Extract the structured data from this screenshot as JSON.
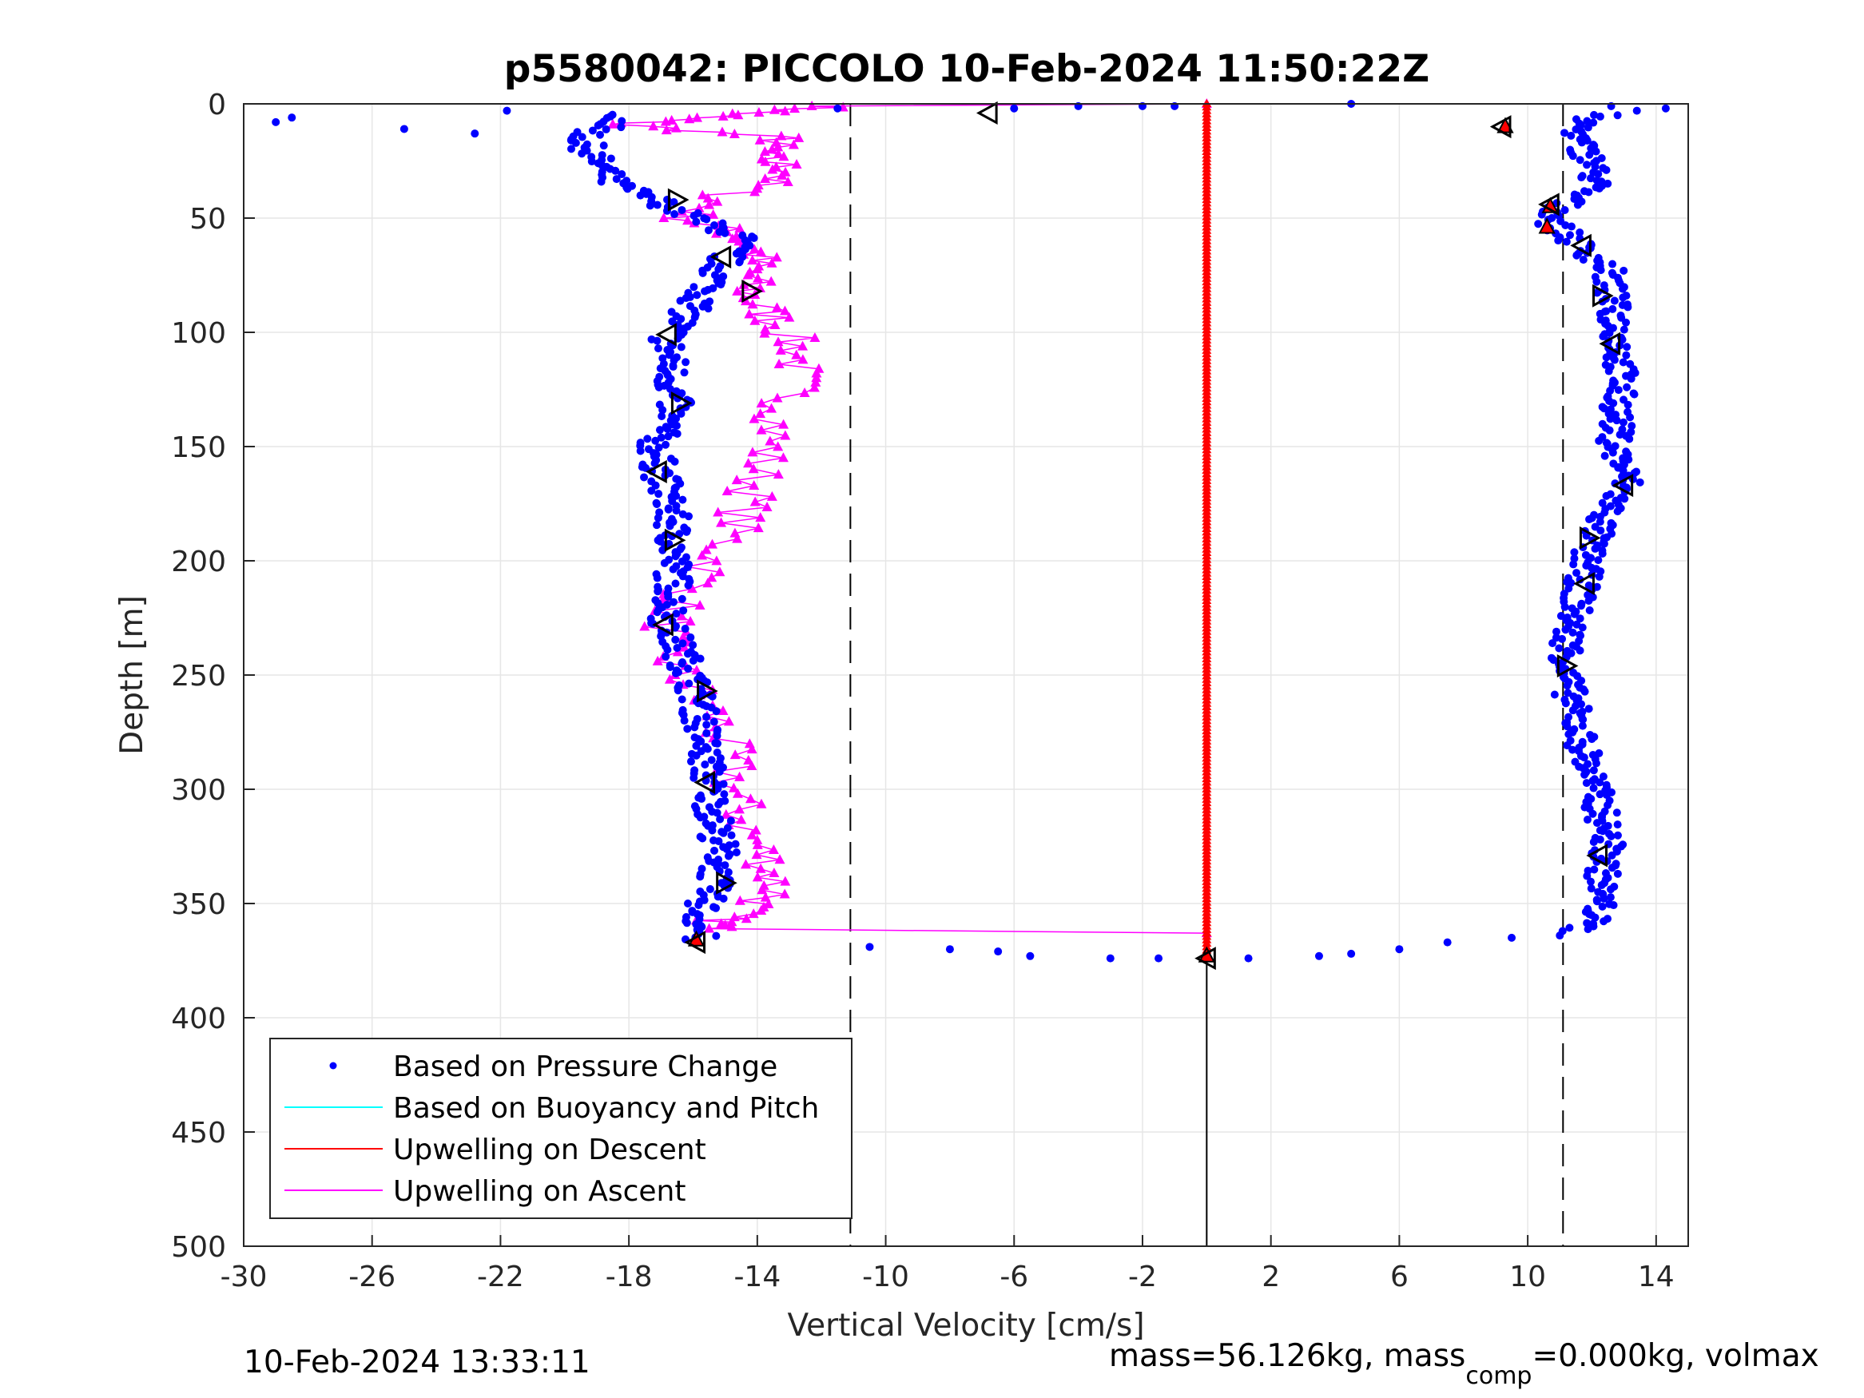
{
  "chart_data": {
    "type": "scatter",
    "title": "p5580042: PICCOLO 10-Feb-2024 11:50:22Z",
    "xlabel": "Vertical Velocity [cm/s]",
    "ylabel": "Depth [m]",
    "xlim": [
      -30,
      15
    ],
    "ylim": [
      0,
      500
    ],
    "y_reversed": true,
    "grid": true,
    "legend_position": "bottom-left",
    "x_ticks": [
      -30,
      -26,
      -22,
      -18,
      -14,
      -10,
      -6,
      -2,
      2,
      6,
      10,
      14
    ],
    "y_ticks": [
      0,
      50,
      100,
      150,
      200,
      250,
      300,
      350,
      400,
      450,
      500
    ],
    "x_tick_labels": [
      "-30",
      "-26",
      "-22",
      "-18",
      "-14",
      "-10",
      "-6",
      "-2",
      "2",
      "6",
      "10",
      "14"
    ],
    "y_tick_labels": [
      "0",
      "50",
      "100",
      "150",
      "200",
      "250",
      "300",
      "350",
      "400",
      "450",
      "500"
    ],
    "reference_lines": {
      "dashed_x": [
        -11.1,
        11.1
      ],
      "solid_x": 0,
      "solid_depth_range": [
        375,
        500
      ]
    },
    "series": [
      {
        "name": "Based on Pressure Change",
        "style": "dots",
        "color": "#0000ff",
        "descent_profile": [
          {
            "depth": 5,
            "vel": -18
          },
          {
            "depth": 15,
            "vel": -19.5
          },
          {
            "depth": 25,
            "vel": -19
          },
          {
            "depth": 35,
            "vel": -18.5
          },
          {
            "depth": 42,
            "vel": -17.2
          },
          {
            "depth": 50,
            "vel": -16
          },
          {
            "depth": 58,
            "vel": -14.5
          },
          {
            "depth": 68,
            "vel": -15
          },
          {
            "depth": 80,
            "vel": -15.5
          },
          {
            "depth": 92,
            "vel": -16.2
          },
          {
            "depth": 102,
            "vel": -16.8
          },
          {
            "depth": 115,
            "vel": -16.7
          },
          {
            "depth": 132,
            "vel": -16.6
          },
          {
            "depth": 150,
            "vel": -17.2
          },
          {
            "depth": 163,
            "vel": -17
          },
          {
            "depth": 178,
            "vel": -16.7
          },
          {
            "depth": 192,
            "vel": -16.6
          },
          {
            "depth": 210,
            "vel": -16.6
          },
          {
            "depth": 228,
            "vel": -16.8
          },
          {
            "depth": 245,
            "vel": -16.2
          },
          {
            "depth": 258,
            "vel": -15.9
          },
          {
            "depth": 275,
            "vel": -15.7
          },
          {
            "depth": 298,
            "vel": -15.5
          },
          {
            "depth": 315,
            "vel": -15.3
          },
          {
            "depth": 330,
            "vel": -15.1
          },
          {
            "depth": 342,
            "vel": -15.4
          },
          {
            "depth": 355,
            "vel": -15.8
          },
          {
            "depth": 366,
            "vel": -15.8
          }
        ],
        "ascent_profile": [
          {
            "depth": 5,
            "vel": 11.8
          },
          {
            "depth": 15,
            "vel": 11.5
          },
          {
            "depth": 25,
            "vel": 12
          },
          {
            "depth": 35,
            "vel": 12.1
          },
          {
            "depth": 45,
            "vel": 11
          },
          {
            "depth": 52,
            "vel": 10.8
          },
          {
            "depth": 62,
            "vel": 11.6
          },
          {
            "depth": 72,
            "vel": 12.5
          },
          {
            "depth": 85,
            "vel": 12.6
          },
          {
            "depth": 100,
            "vel": 12.8
          },
          {
            "depth": 115,
            "vel": 12.9
          },
          {
            "depth": 135,
            "vel": 12.8
          },
          {
            "depth": 150,
            "vel": 12.7
          },
          {
            "depth": 165,
            "vel": 13.1
          },
          {
            "depth": 180,
            "vel": 12.4
          },
          {
            "depth": 195,
            "vel": 11.9
          },
          {
            "depth": 210,
            "vel": 11.7
          },
          {
            "depth": 230,
            "vel": 11.3
          },
          {
            "depth": 250,
            "vel": 11.2
          },
          {
            "depth": 270,
            "vel": 11.5
          },
          {
            "depth": 290,
            "vel": 11.9
          },
          {
            "depth": 310,
            "vel": 12.3
          },
          {
            "depth": 325,
            "vel": 12.5
          },
          {
            "depth": 340,
            "vel": 12.3
          },
          {
            "depth": 355,
            "vel": 12.2
          },
          {
            "depth": 362,
            "vel": 11.5
          }
        ],
        "surface_points": [
          {
            "depth": 8,
            "vel": -29
          },
          {
            "depth": 6,
            "vel": -28.5
          },
          {
            "depth": 11,
            "vel": -25
          },
          {
            "depth": 13,
            "vel": -22.8
          },
          {
            "depth": 3,
            "vel": -21.8
          },
          {
            "depth": 2,
            "vel": -11.5
          },
          {
            "depth": 2,
            "vel": -6
          },
          {
            "depth": 1,
            "vel": -4
          },
          {
            "depth": 1,
            "vel": -2
          },
          {
            "depth": 1,
            "vel": -1
          },
          {
            "depth": 0,
            "vel": 4.5
          },
          {
            "depth": 2,
            "vel": 14.3
          },
          {
            "depth": 3,
            "vel": 13.4
          },
          {
            "depth": 5,
            "vel": 12.8
          },
          {
            "depth": 1,
            "vel": 12.6
          }
        ],
        "bottom_points": [
          {
            "depth": 369,
            "vel": -10.5
          },
          {
            "depth": 370,
            "vel": -8
          },
          {
            "depth": 371,
            "vel": -6.5
          },
          {
            "depth": 373,
            "vel": -5.5
          },
          {
            "depth": 374,
            "vel": -3
          },
          {
            "depth": 374,
            "vel": -1.5
          },
          {
            "depth": 374,
            "vel": 0
          },
          {
            "depth": 374,
            "vel": 1.3
          },
          {
            "depth": 373,
            "vel": 3.5
          },
          {
            "depth": 372,
            "vel": 4.5
          },
          {
            "depth": 370,
            "vel": 6
          },
          {
            "depth": 367,
            "vel": 7.5
          },
          {
            "depth": 365,
            "vel": 9.5
          },
          {
            "depth": 364,
            "vel": 11
          }
        ]
      },
      {
        "name": "Based on Buoyancy and Pitch",
        "style": "line",
        "color": "#00ffff",
        "points": []
      },
      {
        "name": "Upwelling on Descent",
        "style": "line-triangles",
        "color": "#ff0000",
        "points": [
          {
            "depth": 0,
            "vel": 0
          },
          {
            "depth": 373,
            "vel": 0
          }
        ]
      },
      {
        "name": "Upwelling on Ascent",
        "style": "line-triangles",
        "color": "#ff00ff",
        "points": [
          {
            "depth": 0,
            "vel": 0
          },
          {
            "depth": 1,
            "vel": -11.5
          },
          {
            "depth": 5,
            "vel": -15
          },
          {
            "depth": 9,
            "vel": -18.3
          },
          {
            "depth": 15,
            "vel": -13.2
          },
          {
            "depth": 22,
            "vel": -14
          },
          {
            "depth": 30,
            "vel": -12.8
          },
          {
            "depth": 40,
            "vel": -15
          },
          {
            "depth": 50,
            "vel": -16.2
          },
          {
            "depth": 58,
            "vel": -14.5
          },
          {
            "depth": 66,
            "vel": -14
          },
          {
            "depth": 75,
            "vel": -14.3
          },
          {
            "depth": 85,
            "vel": -14.2
          },
          {
            "depth": 95,
            "vel": -13.4
          },
          {
            "depth": 108,
            "vel": -12.7
          },
          {
            "depth": 122,
            "vel": -12.8
          },
          {
            "depth": 138,
            "vel": -13.3
          },
          {
            "depth": 155,
            "vel": -13.8
          },
          {
            "depth": 172,
            "vel": -14.2
          },
          {
            "depth": 188,
            "vel": -14.8
          },
          {
            "depth": 205,
            "vel": -15.6
          },
          {
            "depth": 222,
            "vel": -16.6
          },
          {
            "depth": 238,
            "vel": -17
          },
          {
            "depth": 252,
            "vel": -16.3
          },
          {
            "depth": 268,
            "vel": -15.3
          },
          {
            "depth": 285,
            "vel": -14.9
          },
          {
            "depth": 302,
            "vel": -14.7
          },
          {
            "depth": 318,
            "vel": -14.3
          },
          {
            "depth": 333,
            "vel": -13.6
          },
          {
            "depth": 346,
            "vel": -13.4
          },
          {
            "depth": 356,
            "vel": -15
          },
          {
            "depth": 361,
            "vel": -15.5
          },
          {
            "depth": 363,
            "vel": 0
          }
        ]
      }
    ],
    "markers": {
      "open_triangles": [
        {
          "depth": 4,
          "vel": -6.8,
          "dir": "left"
        },
        {
          "depth": 42,
          "vel": -16.5,
          "dir": "right"
        },
        {
          "depth": 67,
          "vel": -15.1,
          "dir": "left"
        },
        {
          "depth": 82,
          "vel": -14.2,
          "dir": "right"
        },
        {
          "depth": 101,
          "vel": -16.8,
          "dir": "left"
        },
        {
          "depth": 131,
          "vel": -16.4,
          "dir": "right"
        },
        {
          "depth": 161,
          "vel": -17.1,
          "dir": "left"
        },
        {
          "depth": 191,
          "vel": -16.6,
          "dir": "right"
        },
        {
          "depth": 228,
          "vel": -16.9,
          "dir": "left"
        },
        {
          "depth": 257,
          "vel": -15.6,
          "dir": "right"
        },
        {
          "depth": 297,
          "vel": -15.6,
          "dir": "left"
        },
        {
          "depth": 341,
          "vel": -15.0,
          "dir": "right"
        },
        {
          "depth": 10,
          "vel": 9.2,
          "dir": "left"
        },
        {
          "depth": 44,
          "vel": 10.7,
          "dir": "left"
        },
        {
          "depth": 62,
          "vel": 11.7,
          "dir": "left"
        },
        {
          "depth": 84,
          "vel": 12.3,
          "dir": "right"
        },
        {
          "depth": 105,
          "vel": 12.6,
          "dir": "left"
        },
        {
          "depth": 167,
          "vel": 13.0,
          "dir": "left"
        },
        {
          "depth": 190,
          "vel": 11.9,
          "dir": "right"
        },
        {
          "depth": 210,
          "vel": 11.8,
          "dir": "left"
        },
        {
          "depth": 246,
          "vel": 11.2,
          "dir": "right"
        },
        {
          "depth": 329,
          "vel": 12.2,
          "dir": "left"
        },
        {
          "depth": 367,
          "vel": -15.9,
          "dir": "left"
        },
        {
          "depth": 374,
          "vel": 0,
          "dir": "left"
        }
      ],
      "filled_triangles": [
        {
          "depth": 10,
          "vel": 9.3
        },
        {
          "depth": 45,
          "vel": 10.7
        },
        {
          "depth": 54,
          "vel": 10.6
        },
        {
          "depth": 366,
          "vel": -15.9
        },
        {
          "depth": 373,
          "vel": 0
        }
      ]
    }
  },
  "footer": {
    "timestamp": "10-Feb-2024 13:33:11",
    "mass_info_prefix": "mass=56.126kg, mass",
    "mass_info_sub": "comp",
    "mass_info_suffix": "=0.000kg, volmax"
  }
}
